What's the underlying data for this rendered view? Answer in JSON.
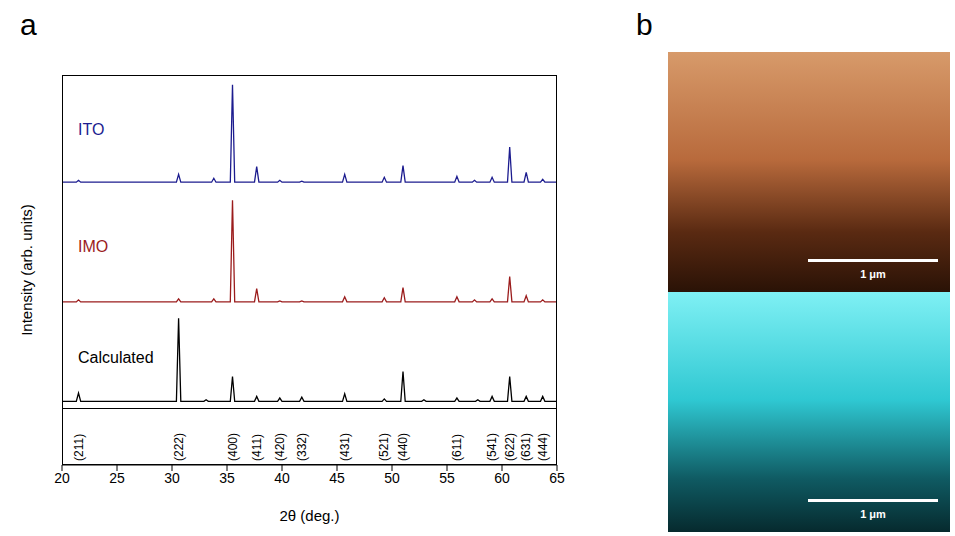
{
  "chart_data": {
    "type": "line",
    "label": "a",
    "x_label": "2θ (deg.)",
    "y_label": "Intensity (arb. units)",
    "xlim": [
      20,
      65
    ],
    "xticks": [
      20,
      25,
      30,
      35,
      40,
      45,
      50,
      55,
      60,
      65
    ],
    "tick_labels": "x",
    "series": [
      {
        "name": "ITO",
        "color": "#1c1c8f",
        "ylim": [
          -8,
          110
        ],
        "x": [
          20,
          21.3,
          21.5,
          21.7,
          30.4,
          30.6,
          30.8,
          33.6,
          33.8,
          34.0,
          35.3,
          35.5,
          35.7,
          37.5,
          37.7,
          37.9,
          39.6,
          39.8,
          40.0,
          41.6,
          41.8,
          42.0,
          45.5,
          45.7,
          45.9,
          49.1,
          49.3,
          49.5,
          50.8,
          51.0,
          51.2,
          55.7,
          55.9,
          56.1,
          57.3,
          57.5,
          57.7,
          58.9,
          59.1,
          59.3,
          60.5,
          60.7,
          60.9,
          62.0,
          62.2,
          62.4,
          63.5,
          63.7,
          63.9,
          65
        ],
        "values": [
          0,
          0,
          2,
          0,
          0,
          8,
          0,
          0,
          4,
          0,
          0,
          100,
          0,
          0,
          16,
          0,
          0,
          2,
          0,
          0,
          1,
          0,
          0,
          8,
          0,
          0,
          5,
          0,
          0,
          17,
          0,
          0,
          6,
          0,
          0,
          2,
          0,
          0,
          5,
          0,
          0,
          36,
          0,
          0,
          10,
          0,
          0,
          3,
          0,
          0
        ]
      },
      {
        "name": "IMO",
        "color": "#9b1c1c",
        "ylim": [
          -8,
          110
        ],
        "x": [
          20,
          21.3,
          21.5,
          21.7,
          30.4,
          30.6,
          30.8,
          33.6,
          33.8,
          34.0,
          35.3,
          35.5,
          35.7,
          37.5,
          37.7,
          37.9,
          39.6,
          39.8,
          40.0,
          41.6,
          41.8,
          42.0,
          45.5,
          45.7,
          45.9,
          49.1,
          49.3,
          49.5,
          50.8,
          51.0,
          51.2,
          55.7,
          55.9,
          56.1,
          57.3,
          57.5,
          57.7,
          58.9,
          59.1,
          59.3,
          60.5,
          60.7,
          60.9,
          62.0,
          62.2,
          62.4,
          63.5,
          63.7,
          63.9,
          65
        ],
        "values": [
          0,
          0,
          2,
          0,
          0,
          3,
          0,
          0,
          3,
          0,
          0,
          100,
          0,
          0,
          13,
          0,
          0,
          1,
          0,
          0,
          1,
          0,
          0,
          5,
          0,
          0,
          4,
          0,
          0,
          14,
          0,
          0,
          5,
          0,
          0,
          2,
          0,
          0,
          3,
          0,
          0,
          25,
          0,
          0,
          6,
          0,
          0,
          2,
          0,
          0
        ]
      },
      {
        "name": "Calculated",
        "color": "#000000",
        "ylim": [
          -8,
          110
        ],
        "x": [
          20,
          21.3,
          21.5,
          21.7,
          30.4,
          30.6,
          30.8,
          32.9,
          33.1,
          33.3,
          35.3,
          35.5,
          35.7,
          37.5,
          37.7,
          37.9,
          39.6,
          39.8,
          40.0,
          41.6,
          41.8,
          42.0,
          45.5,
          45.7,
          45.9,
          49.1,
          49.3,
          49.5,
          50.8,
          51.0,
          51.2,
          52.7,
          52.9,
          53.1,
          55.7,
          55.9,
          56.1,
          57.6,
          57.8,
          58.0,
          58.9,
          59.1,
          59.3,
          60.5,
          60.7,
          60.9,
          62.0,
          62.2,
          62.4,
          63.5,
          63.7,
          63.9,
          65
        ],
        "values": [
          0,
          0,
          10,
          0,
          0,
          100,
          0,
          0,
          2,
          0,
          0,
          30,
          0,
          0,
          6,
          0,
          0,
          4,
          0,
          0,
          5,
          0,
          0,
          9,
          0,
          0,
          3,
          0,
          0,
          36,
          0,
          0,
          2,
          0,
          0,
          4,
          0,
          0,
          2,
          0,
          0,
          6,
          0,
          0,
          30,
          0,
          0,
          6,
          0,
          0,
          6,
          0,
          0
        ]
      }
    ],
    "reflections": {
      "labels": [
        "(211)",
        "(222)",
        "(400)",
        "(411)",
        "(420)",
        "(332)",
        "(431)",
        "(521)",
        "(440)",
        "(611)",
        "(541)",
        "(622)",
        "(631)",
        "(444)"
      ],
      "x": [
        21.5,
        30.6,
        35.5,
        37.7,
        39.8,
        41.8,
        45.7,
        49.3,
        51.0,
        55.9,
        59.1,
        60.7,
        62.2,
        63.7
      ]
    }
  },
  "images": {
    "label": "b",
    "scale_bars": [
      "1 μm",
      "1 μm"
    ]
  }
}
